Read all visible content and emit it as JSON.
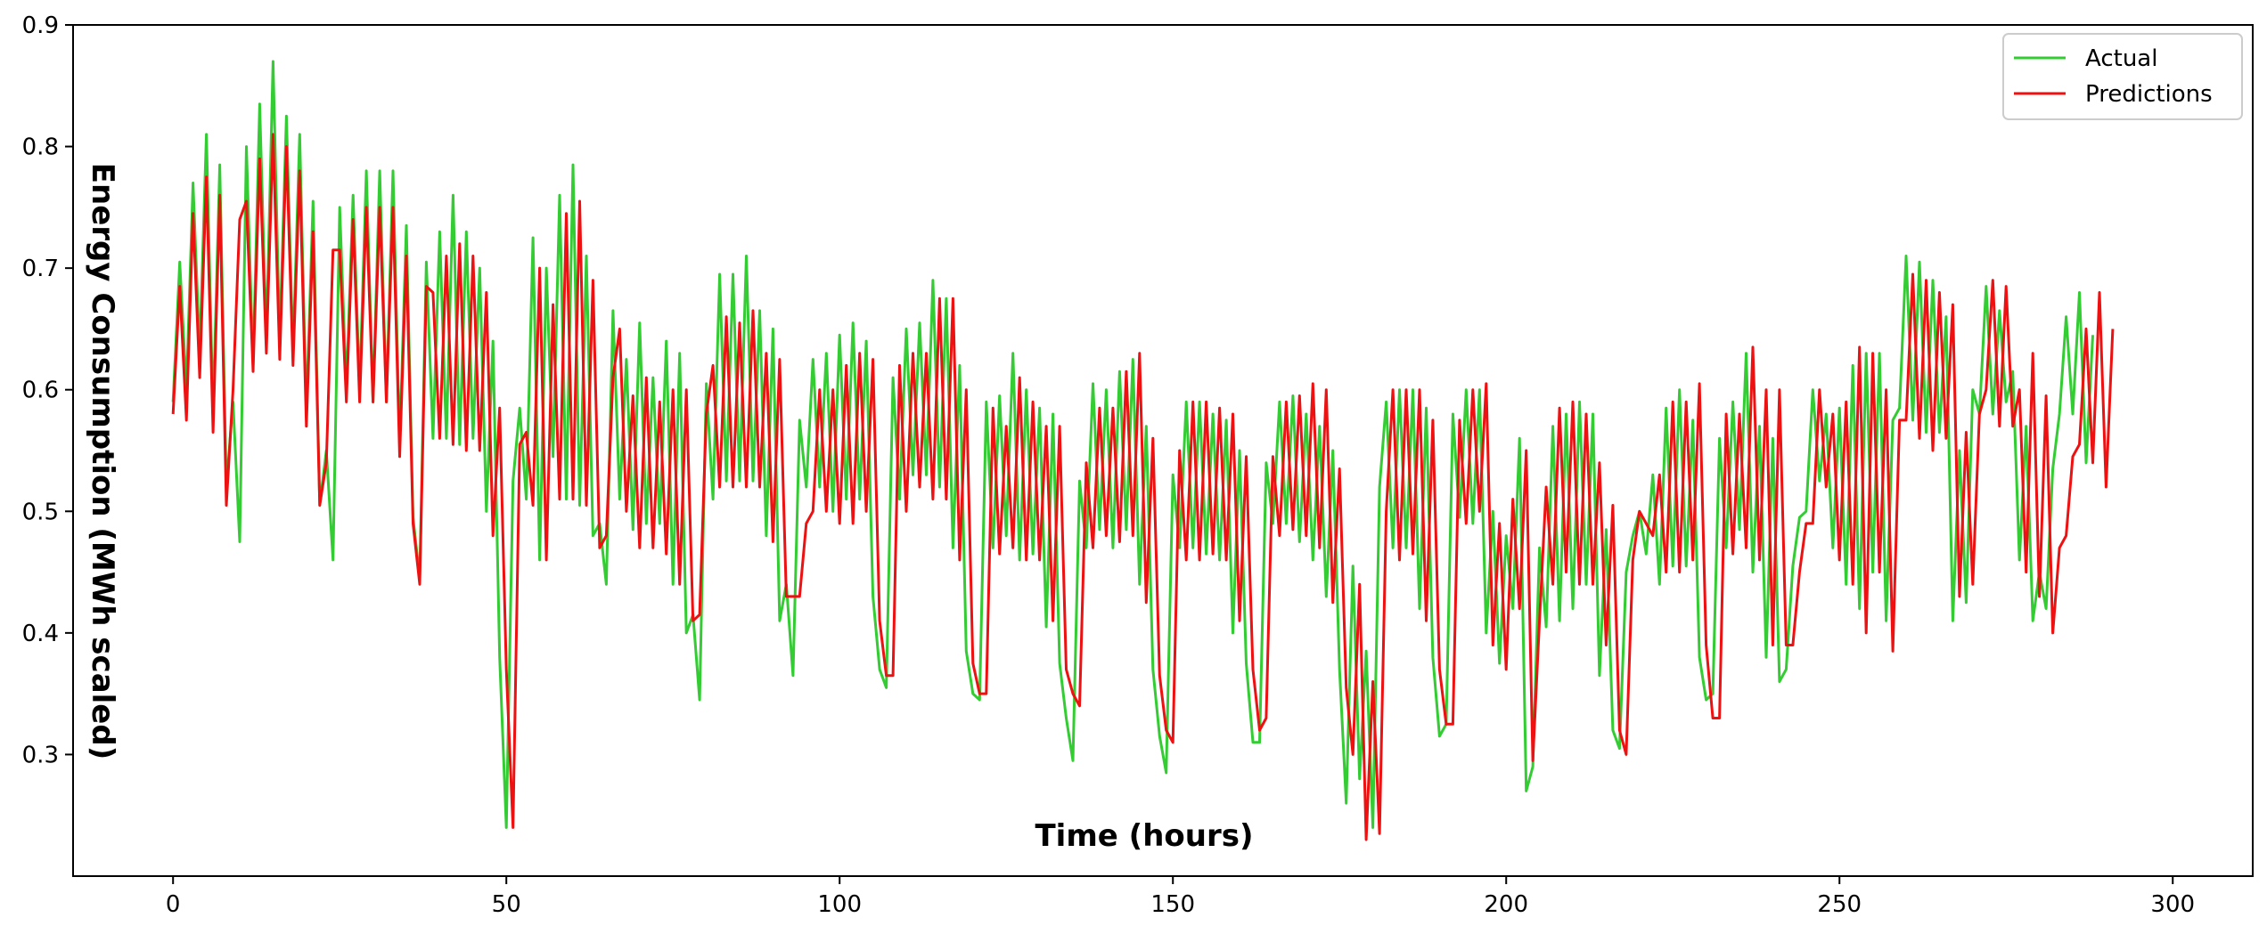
{
  "chart_data": {
    "type": "line",
    "title": "",
    "xlabel": "Time (hours)",
    "ylabel": "Energy Consumption (MWh scaled)",
    "xlim": [
      -15,
      312
    ],
    "ylim": [
      0.2,
      0.9
    ],
    "xticks": [
      0,
      50,
      100,
      150,
      200,
      250,
      300
    ],
    "yticks": [
      0.3,
      0.4,
      0.5,
      0.6,
      0.7,
      0.8,
      0.9
    ],
    "xtick_labels": [
      "0",
      "50",
      "100",
      "150",
      "200",
      "250",
      "300"
    ],
    "ytick_labels": [
      "0.3",
      "0.4",
      "0.5",
      "0.6",
      "0.7",
      "0.8",
      "0.9"
    ],
    "grid": false,
    "legend_position": "top-right",
    "series": [
      {
        "name": "Actual",
        "color": "#33cc33",
        "values": [
          0.59,
          0.705,
          0.6,
          0.77,
          0.63,
          0.81,
          0.58,
          0.785,
          0.52,
          0.59,
          0.475,
          0.8,
          0.62,
          0.835,
          0.64,
          0.87,
          0.64,
          0.825,
          0.63,
          0.81,
          0.58,
          0.755,
          0.505,
          0.55,
          0.46,
          0.75,
          0.6,
          0.76,
          0.6,
          0.78,
          0.59,
          0.78,
          0.59,
          0.78,
          0.555,
          0.735,
          0.495,
          0.445,
          0.705,
          0.56,
          0.73,
          0.56,
          0.76,
          0.555,
          0.73,
          0.56,
          0.7,
          0.5,
          0.64,
          0.38,
          0.24,
          0.525,
          0.585,
          0.51,
          0.725,
          0.46,
          0.7,
          0.545,
          0.76,
          0.51,
          0.785,
          0.505,
          0.71,
          0.48,
          0.49,
          0.44,
          0.665,
          0.51,
          0.625,
          0.485,
          0.655,
          0.49,
          0.61,
          0.49,
          0.64,
          0.44,
          0.63,
          0.4,
          0.415,
          0.345,
          0.605,
          0.51,
          0.695,
          0.525,
          0.695,
          0.525,
          0.71,
          0.525,
          0.665,
          0.48,
          0.65,
          0.41,
          0.44,
          0.365,
          0.575,
          0.52,
          0.625,
          0.52,
          0.63,
          0.5,
          0.645,
          0.51,
          0.655,
          0.51,
          0.64,
          0.43,
          0.37,
          0.355,
          0.61,
          0.51,
          0.65,
          0.53,
          0.655,
          0.53,
          0.69,
          0.52,
          0.675,
          0.47,
          0.62,
          0.385,
          0.35,
          0.345,
          0.59,
          0.47,
          0.595,
          0.48,
          0.63,
          0.46,
          0.6,
          0.465,
          0.585,
          0.405,
          0.58,
          0.375,
          0.33,
          0.295,
          0.525,
          0.47,
          0.605,
          0.485,
          0.6,
          0.47,
          0.615,
          0.485,
          0.625,
          0.44,
          0.57,
          0.37,
          0.315,
          0.285,
          0.53,
          0.47,
          0.59,
          0.47,
          0.59,
          0.465,
          0.58,
          0.46,
          0.575,
          0.4,
          0.55,
          0.375,
          0.31,
          0.31,
          0.54,
          0.49,
          0.59,
          0.49,
          0.595,
          0.475,
          0.58,
          0.46,
          0.57,
          0.43,
          0.55,
          0.37,
          0.26,
          0.455,
          0.28,
          0.385,
          0.24,
          0.52,
          0.59,
          0.47,
          0.6,
          0.47,
          0.6,
          0.42,
          0.585,
          0.38,
          0.315,
          0.325,
          0.58,
          0.495,
          0.6,
          0.49,
          0.6,
          0.4,
          0.5,
          0.375,
          0.48,
          0.42,
          0.56,
          0.27,
          0.29,
          0.47,
          0.405,
          0.57,
          0.41,
          0.58,
          0.42,
          0.59,
          0.44,
          0.58,
          0.365,
          0.485,
          0.32,
          0.305,
          0.45,
          0.48,
          0.5,
          0.465,
          0.53,
          0.44,
          0.585,
          0.455,
          0.6,
          0.455,
          0.575,
          0.38,
          0.345,
          0.35,
          0.56,
          0.47,
          0.59,
          0.485,
          0.63,
          0.45,
          0.57,
          0.38,
          0.56,
          0.36,
          0.37,
          0.455,
          0.495,
          0.5,
          0.6,
          0.525,
          0.58,
          0.47,
          0.585,
          0.44,
          0.62,
          0.42,
          0.63,
          0.45,
          0.63,
          0.41,
          0.575,
          0.585,
          0.71,
          0.575,
          0.705,
          0.565,
          0.69,
          0.565,
          0.66,
          0.41,
          0.55,
          0.425,
          0.6,
          0.58,
          0.685,
          0.58,
          0.665,
          0.59,
          0.615,
          0.46,
          0.57,
          0.41,
          0.45,
          0.42,
          0.535,
          0.58,
          0.66,
          0.58,
          0.68,
          0.54,
          0.645
        ]
      },
      {
        "name": "Predictions",
        "color": "#ee1111",
        "values": [
          0.58,
          0.685,
          0.575,
          0.745,
          0.61,
          0.775,
          0.565,
          0.76,
          0.505,
          0.6,
          0.74,
          0.755,
          0.615,
          0.79,
          0.63,
          0.81,
          0.625,
          0.8,
          0.62,
          0.78,
          0.57,
          0.73,
          0.505,
          0.54,
          0.715,
          0.715,
          0.59,
          0.74,
          0.59,
          0.75,
          0.59,
          0.75,
          0.59,
          0.75,
          0.545,
          0.71,
          0.49,
          0.44,
          0.685,
          0.68,
          0.56,
          0.71,
          0.555,
          0.72,
          0.55,
          0.71,
          0.55,
          0.68,
          0.48,
          0.585,
          0.37,
          0.24,
          0.555,
          0.565,
          0.505,
          0.7,
          0.46,
          0.67,
          0.51,
          0.745,
          0.51,
          0.755,
          0.505,
          0.69,
          0.47,
          0.48,
          0.61,
          0.65,
          0.5,
          0.595,
          0.47,
          0.61,
          0.47,
          0.59,
          0.465,
          0.6,
          0.44,
          0.6,
          0.41,
          0.415,
          0.58,
          0.62,
          0.52,
          0.66,
          0.52,
          0.655,
          0.52,
          0.665,
          0.52,
          0.63,
          0.475,
          0.625,
          0.43,
          0.43,
          0.43,
          0.49,
          0.5,
          0.6,
          0.5,
          0.6,
          0.49,
          0.62,
          0.49,
          0.63,
          0.5,
          0.625,
          0.41,
          0.365,
          0.365,
          0.62,
          0.5,
          0.63,
          0.52,
          0.63,
          0.51,
          0.675,
          0.51,
          0.675,
          0.46,
          0.6,
          0.375,
          0.35,
          0.35,
          0.585,
          0.465,
          0.57,
          0.47,
          0.61,
          0.46,
          0.59,
          0.46,
          0.57,
          0.41,
          0.57,
          0.37,
          0.35,
          0.34,
          0.54,
          0.47,
          0.585,
          0.48,
          0.585,
          0.475,
          0.615,
          0.48,
          0.63,
          0.425,
          0.56,
          0.365,
          0.32,
          0.31,
          0.55,
          0.46,
          0.59,
          0.46,
          0.59,
          0.465,
          0.585,
          0.46,
          0.58,
          0.41,
          0.545,
          0.37,
          0.32,
          0.33,
          0.545,
          0.48,
          0.59,
          0.485,
          0.595,
          0.48,
          0.605,
          0.47,
          0.6,
          0.425,
          0.535,
          0.355,
          0.3,
          0.44,
          0.23,
          0.36,
          0.235,
          0.5,
          0.6,
          0.46,
          0.6,
          0.465,
          0.6,
          0.41,
          0.575,
          0.37,
          0.325,
          0.325,
          0.575,
          0.49,
          0.6,
          0.5,
          0.605,
          0.39,
          0.49,
          0.37,
          0.51,
          0.42,
          0.55,
          0.295,
          0.41,
          0.52,
          0.44,
          0.585,
          0.45,
          0.59,
          0.44,
          0.58,
          0.44,
          0.54,
          0.39,
          0.505,
          0.32,
          0.3,
          0.46,
          0.5,
          0.49,
          0.48,
          0.53,
          0.45,
          0.59,
          0.45,
          0.59,
          0.46,
          0.605,
          0.39,
          0.33,
          0.33,
          0.58,
          0.465,
          0.58,
          0.47,
          0.635,
          0.46,
          0.6,
          0.39,
          0.6,
          0.39,
          0.39,
          0.45,
          0.49,
          0.49,
          0.6,
          0.52,
          0.58,
          0.46,
          0.59,
          0.44,
          0.635,
          0.4,
          0.63,
          0.45,
          0.6,
          0.385,
          0.575,
          0.575,
          0.695,
          0.56,
          0.69,
          0.55,
          0.68,
          0.56,
          0.67,
          0.43,
          0.565,
          0.44,
          0.58,
          0.6,
          0.69,
          0.57,
          0.685,
          0.57,
          0.6,
          0.45,
          0.63,
          0.43,
          0.595,
          0.4,
          0.47,
          0.48,
          0.545,
          0.555,
          0.65,
          0.54,
          0.68,
          0.52,
          0.65
        ]
      }
    ]
  }
}
